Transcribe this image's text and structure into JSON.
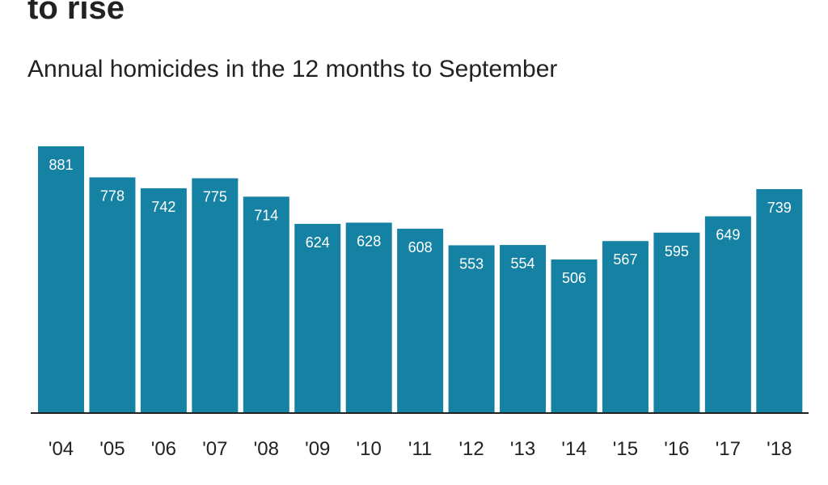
{
  "chart_data": {
    "type": "bar",
    "title": "to rise",
    "subtitle": "Annual homicides in the 12 months to September",
    "categories": [
      "'04",
      "'05",
      "'06",
      "'07",
      "'08",
      "'09",
      "'10",
      "'11",
      "'12",
      "'13",
      "'14",
      "'15",
      "'16",
      "'17",
      "'18"
    ],
    "values": [
      881,
      778,
      742,
      775,
      714,
      624,
      628,
      608,
      553,
      554,
      506,
      567,
      595,
      649,
      739
    ],
    "ylim": [
      0,
      900
    ],
    "grid": false,
    "bar_color": "#1682a3",
    "axis_color": "#222222"
  }
}
